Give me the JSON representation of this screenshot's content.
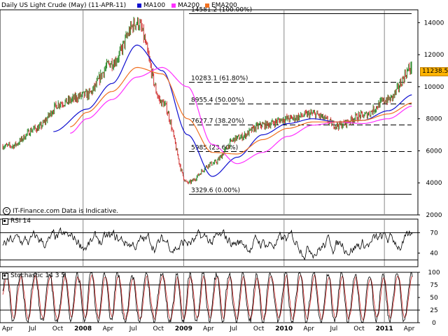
{
  "header": {
    "title": "Daily US Light Crude (May) (11-APR-11)",
    "ma100_label": "MA100",
    "ma200_label": "MA200",
    "ema200_label": "EMA200"
  },
  "credit": "IT-Finance.com Data is Indicative.",
  "panels": {
    "rsi_label": "RSI 14",
    "stoch_label": "Stochastic 14 3 5"
  },
  "current_price": "11238.5",
  "colors": {
    "price": "#000000",
    "ma100": "#1010d0",
    "ma200": "#ff30ff",
    "ema200": "#f07020",
    "up_candle": "#2a8a2a",
    "down_candle": "#d03030",
    "stoch_k": "#000000",
    "stoch_d": "#cc2020",
    "price_box": "#ffb400"
  },
  "chart_data": {
    "type": "line",
    "title": "Daily US Light Crude (May) (11-APR-11)",
    "x_tick_labels": [
      "Apr",
      "Jul",
      "Oct",
      "2008",
      "Apr",
      "Jul",
      "Oct",
      "2009",
      "Apr",
      "Jul",
      "Oct",
      "2010",
      "Apr",
      "Jul",
      "Oct",
      "2011",
      "Apr"
    ],
    "y_ticks": [
      2000,
      4000,
      6000,
      8000,
      10000,
      12000,
      14000
    ],
    "ylim": [
      2000,
      14800
    ],
    "fibonacci": [
      {
        "label": "14581.2 (100.00%)",
        "value": 14581.2
      },
      {
        "label": "10283.1 (61.80%)",
        "value": 10283.1
      },
      {
        "label": "8955.4 (50.00%)",
        "value": 8955.4
      },
      {
        "label": "7627.7 (38.20%)",
        "value": 7627.7
      },
      {
        "label": "5985 (23.60%)",
        "value": 5985
      },
      {
        "label": "3329.6 (0.00%)",
        "value": 3329.6
      }
    ],
    "series": [
      {
        "name": "Daily US Light Crude (May)",
        "x": [
          "2007-04",
          "2007-07",
          "2007-10",
          "2008-01",
          "2008-04",
          "2008-07",
          "2008-10",
          "2009-01",
          "2009-04",
          "2009-07",
          "2009-10",
          "2010-01",
          "2010-04",
          "2010-07",
          "2010-10",
          "2011-01",
          "2011-04"
        ],
        "values": [
          6300,
          7400,
          9000,
          9500,
          11500,
          14000,
          9000,
          4000,
          5200,
          6800,
          7600,
          8000,
          8300,
          7600,
          8200,
          9200,
          11238.5
        ]
      },
      {
        "name": "MA100",
        "x": [
          "2007-09",
          "2008-01",
          "2008-04",
          "2008-07",
          "2008-10",
          "2009-01",
          "2009-04",
          "2009-07",
          "2009-10",
          "2010-01",
          "2010-04",
          "2010-07",
          "2010-10",
          "2011-01",
          "2011-04"
        ],
        "values": [
          7200,
          8600,
          10200,
          12600,
          11000,
          7000,
          4400,
          5600,
          7000,
          7700,
          8000,
          7800,
          7900,
          8500,
          9500
        ]
      },
      {
        "name": "MA200",
        "x": [
          "2007-11",
          "2008-01",
          "2008-04",
          "2008-07",
          "2008-10",
          "2009-01",
          "2009-04",
          "2009-07",
          "2009-10",
          "2010-01",
          "2010-04",
          "2010-07",
          "2010-10",
          "2011-01",
          "2011-04"
        ],
        "values": [
          7100,
          8000,
          9200,
          10600,
          11200,
          10000,
          6400,
          5200,
          5900,
          6900,
          7600,
          7800,
          7700,
          8000,
          8800
        ]
      },
      {
        "name": "EMA200",
        "x": [
          "2007-11",
          "2008-01",
          "2008-04",
          "2008-07",
          "2008-10",
          "2009-01",
          "2009-04",
          "2009-07",
          "2009-10",
          "2010-01",
          "2010-04",
          "2010-07",
          "2010-10",
          "2011-01",
          "2011-04"
        ],
        "values": [
          7500,
          8400,
          9700,
          11200,
          10800,
          8000,
          5900,
          5800,
          6700,
          7400,
          7800,
          7800,
          7900,
          8300,
          9000
        ]
      }
    ],
    "rsi": {
      "label": "RSI 14",
      "y_ticks": [
        40,
        70
      ],
      "ylim": [
        20,
        90
      ],
      "levels": [
        30,
        70
      ]
    },
    "stochastic": {
      "label": "Stochastic 14 3 5",
      "y_ticks": [
        0,
        25,
        50,
        75,
        100
      ],
      "ylim": [
        0,
        100
      ],
      "levels": [
        25,
        75
      ]
    }
  }
}
